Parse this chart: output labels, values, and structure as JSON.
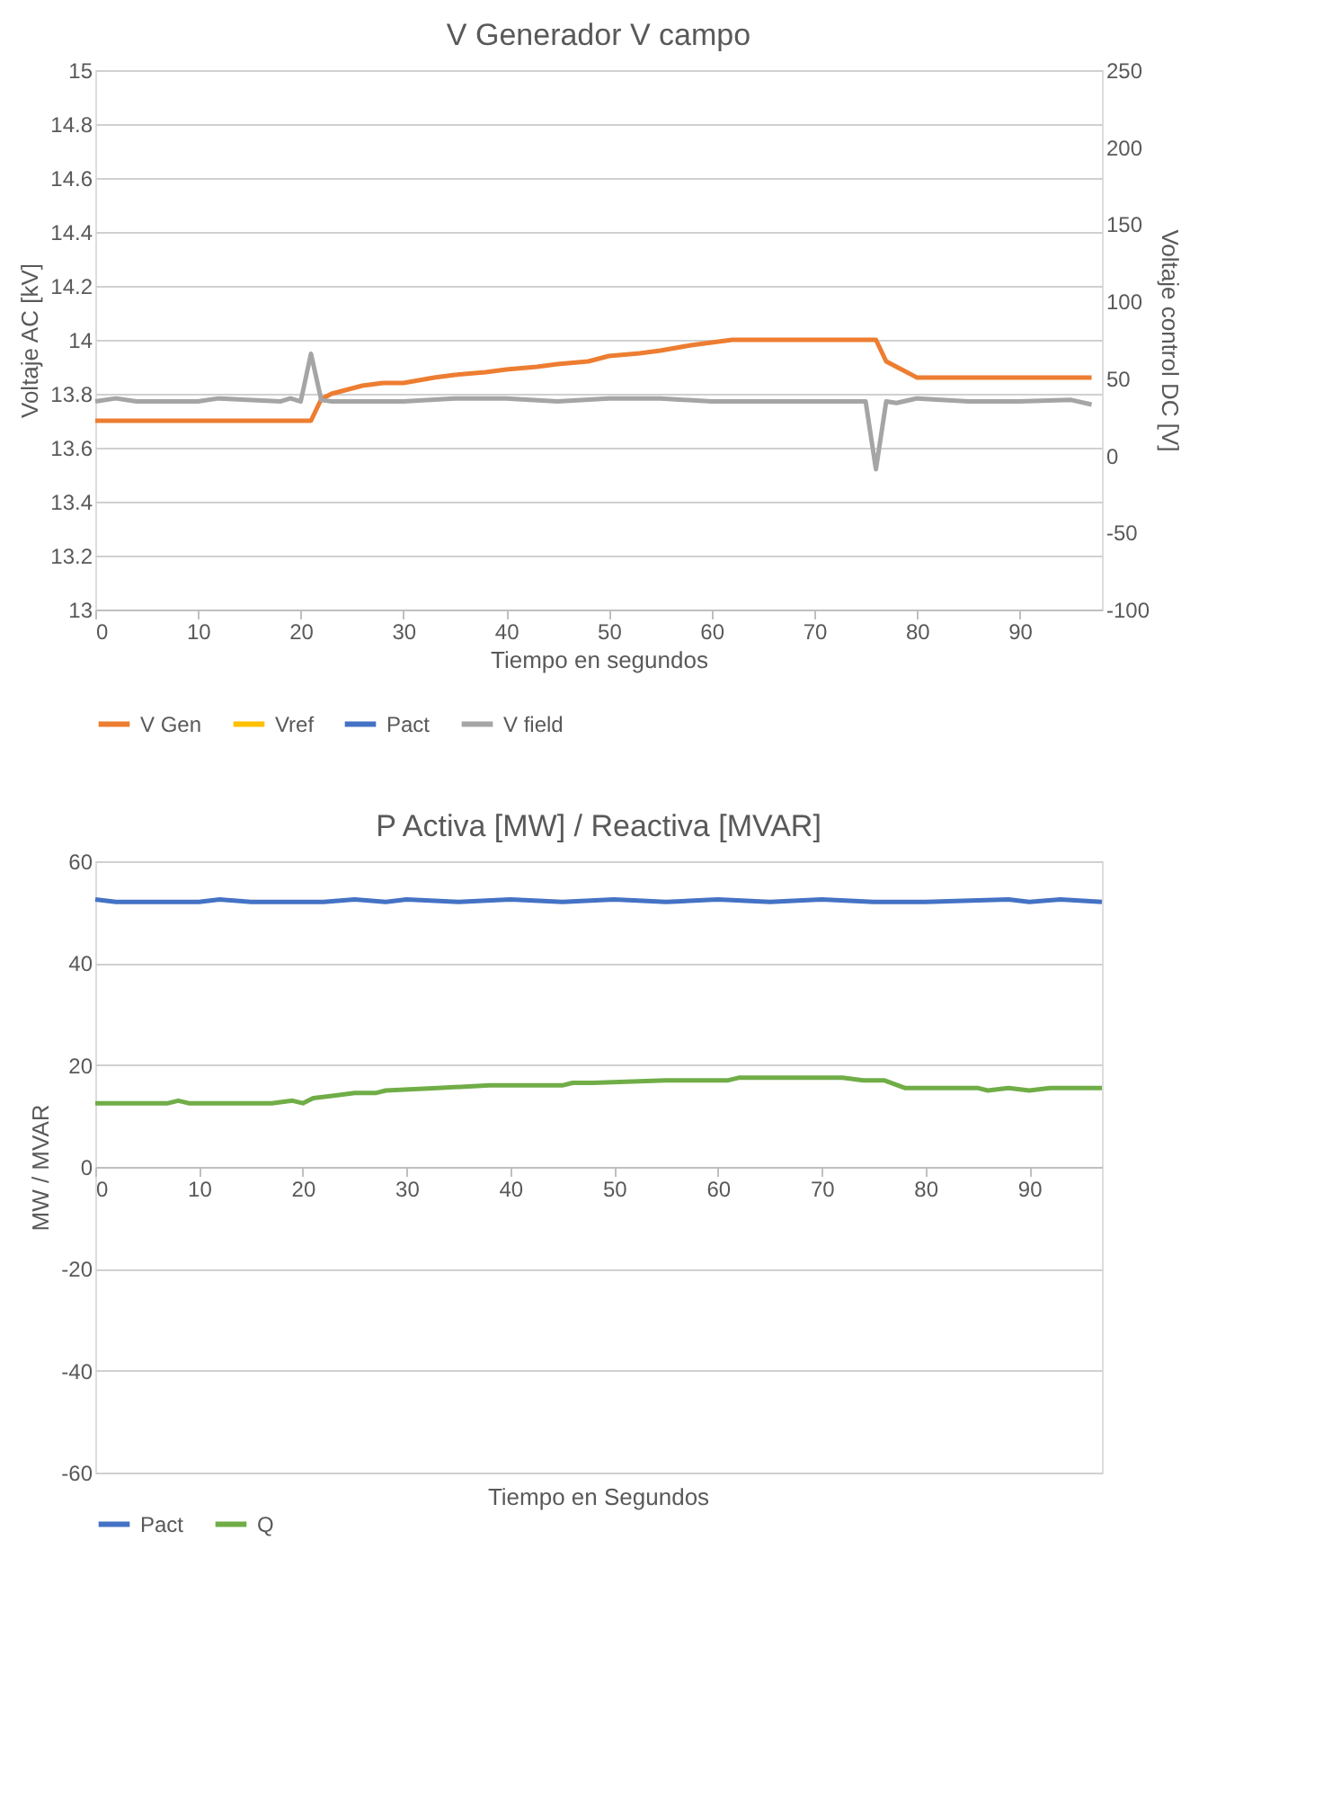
{
  "chart_data": [
    {
      "type": "line",
      "title": "V Generador V campo",
      "xlabel": "Tiempo en segundos",
      "ylabel": "Voltaje AC [kV]",
      "y2label": "Voltaje control DC [V]",
      "xlim": [
        0,
        98
      ],
      "xticks": [
        0,
        10,
        20,
        30,
        40,
        50,
        60,
        70,
        80,
        90
      ],
      "ylim": [
        13,
        15
      ],
      "yticks": [
        13,
        13.2,
        13.4,
        13.6,
        13.8,
        14,
        14.2,
        14.4,
        14.6,
        14.8,
        15
      ],
      "y2lim": [
        -100,
        250
      ],
      "y2ticks": [
        -100,
        -50,
        0,
        50,
        100,
        150,
        200,
        250
      ],
      "grid": "y",
      "legend": "bottom",
      "series": [
        {
          "name": "V Gen",
          "color": "#ed7d31",
          "x": [
            0,
            21,
            22,
            23,
            24,
            25,
            26,
            28,
            30,
            33,
            35,
            38,
            40,
            43,
            45,
            48,
            50,
            53,
            55,
            58,
            60,
            62,
            76,
            77,
            78,
            80,
            97
          ],
          "values": [
            13.7,
            13.7,
            13.78,
            13.8,
            13.81,
            13.82,
            13.83,
            13.84,
            13.84,
            13.86,
            13.87,
            13.88,
            13.89,
            13.9,
            13.91,
            13.92,
            13.94,
            13.95,
            13.96,
            13.98,
            13.99,
            14.0,
            14.0,
            13.92,
            13.9,
            13.86,
            13.86
          ]
        },
        {
          "name": "Vref",
          "color": "#ffc000"
        },
        {
          "name": "Pact",
          "color": "#4472c4"
        },
        {
          "name": "V field",
          "color": "#a5a5a5",
          "axis": "y2",
          "x": [
            0,
            2,
            4,
            10,
            12,
            18,
            19,
            20,
            21,
            22,
            23,
            30,
            35,
            40,
            45,
            50,
            55,
            60,
            65,
            70,
            75,
            76,
            77,
            78,
            80,
            85,
            90,
            95,
            97
          ],
          "values": [
            35,
            37,
            35,
            35,
            37,
            35,
            37,
            35,
            66,
            36,
            35,
            35,
            37,
            37,
            35,
            37,
            37,
            35,
            35,
            35,
            35,
            -9,
            35,
            34,
            37,
            35,
            35,
            36,
            33
          ]
        }
      ]
    },
    {
      "type": "line",
      "title": "P Activa [MW] / Reactiva [MVAR]",
      "xlabel": "Tiempo en Segundos",
      "ylabel": "MW / MVAR",
      "xlim": [
        0,
        97
      ],
      "xticks": [
        0,
        10,
        20,
        30,
        40,
        50,
        60,
        70,
        80,
        90
      ],
      "ylim": [
        -60,
        60
      ],
      "yticks": [
        -60,
        -40,
        -20,
        0,
        20,
        40,
        60
      ],
      "grid": "y",
      "legend": "bottom",
      "series": [
        {
          "name": "Pact",
          "color": "#4472c4",
          "x": [
            0,
            2,
            10,
            12,
            15,
            18,
            22,
            25,
            28,
            30,
            35,
            40,
            45,
            50,
            55,
            60,
            65,
            70,
            75,
            80,
            88,
            90,
            93,
            97
          ],
          "values": [
            52.5,
            52,
            52,
            52.5,
            52,
            52,
            52,
            52.5,
            52,
            52.5,
            52,
            52.5,
            52,
            52.5,
            52,
            52.5,
            52,
            52.5,
            52,
            52,
            52.5,
            52,
            52.5,
            52
          ]
        },
        {
          "name": "Q",
          "color": "#70ad47",
          "x": [
            0,
            7,
            8,
            9,
            17,
            19,
            20,
            21,
            23,
            25,
            27,
            28,
            33,
            38,
            45,
            46,
            48,
            55,
            61,
            62,
            64,
            66,
            68,
            70,
            72,
            74,
            76,
            78,
            85,
            86,
            88,
            90,
            92,
            97
          ],
          "values": [
            12.5,
            12.5,
            13,
            12.5,
            12.5,
            13,
            12.5,
            13.5,
            14,
            14.5,
            14.5,
            15,
            15.5,
            16,
            16,
            16.5,
            16.5,
            17,
            17,
            17.5,
            17.5,
            17.5,
            17.5,
            17.5,
            17.5,
            17,
            17,
            15.5,
            15.5,
            15,
            15.5,
            15,
            15.5,
            15.5
          ]
        }
      ]
    }
  ]
}
